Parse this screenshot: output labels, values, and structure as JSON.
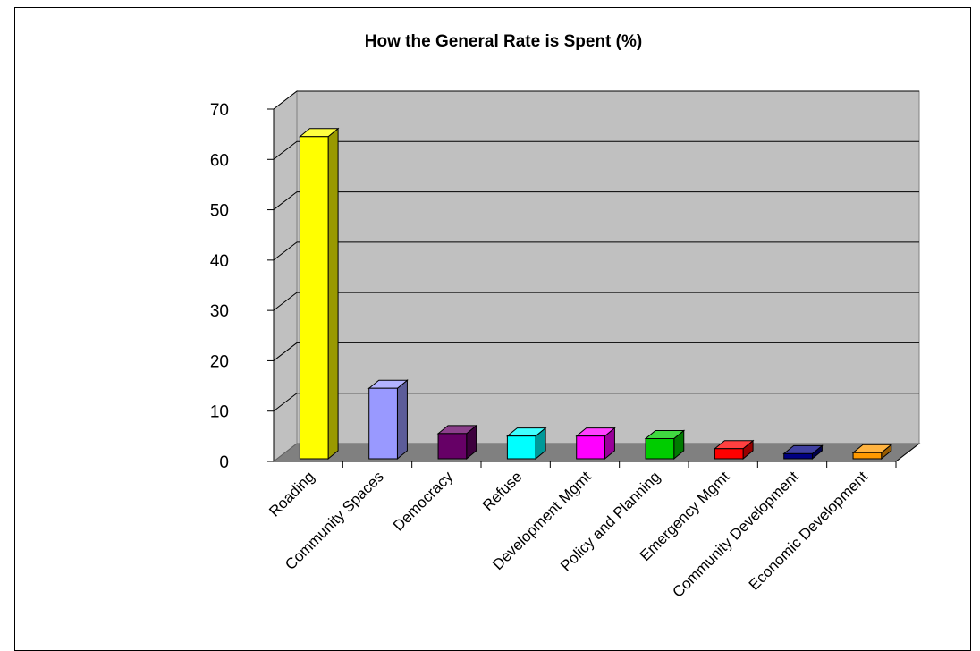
{
  "chart_data": {
    "type": "bar",
    "title": "How the General Rate is Spent (%)",
    "xlabel": "",
    "ylabel": "",
    "ylim": [
      0,
      70
    ],
    "yticks": [
      "0",
      "10",
      "20",
      "30",
      "40",
      "50",
      "60",
      "70"
    ],
    "grid": true,
    "legend": "none",
    "three_d": true,
    "categories": [
      "Roading",
      "Community Spaces",
      "Democracy",
      "Refuse",
      "Development Mgmt",
      "Policy and Planning",
      "Emergency Mgmt",
      "Community Development",
      "Economic Development"
    ],
    "values": [
      64,
      14,
      5,
      4.5,
      4.5,
      4,
      2,
      1,
      1.2
    ],
    "colors": [
      "#ffff00",
      "#9999ff",
      "#660066",
      "#00ffff",
      "#ff00ff",
      "#00cc00",
      "#ff0000",
      "#000080",
      "#ff9900"
    ],
    "wall_color": "#c0c0c0",
    "floor_color": "#808080"
  }
}
